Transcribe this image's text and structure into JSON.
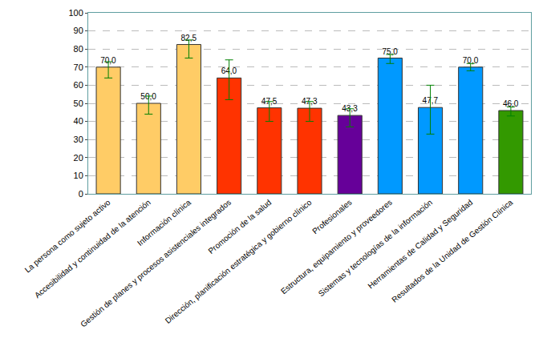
{
  "chart_data": {
    "type": "bar",
    "categories": [
      "La persona como sujeto activo",
      "Accesibilidad y continuidad de la atención",
      "Información clínica",
      "Gestión de planes y procesos asistenciales integrados",
      "Promoción de la salud",
      "Dirección, planificación estratégica y gobierno clínico",
      "Profesionales",
      "Estructura, equipamiento y proveedores",
      "Sistemas y tecnologías de la información",
      "Herramientas de Calidad y Seguridad",
      "Resultados de la Unidad de Gestión Clínica"
    ],
    "values": [
      70.0,
      50.0,
      82.5,
      64.0,
      47.5,
      47.3,
      43.3,
      75.0,
      47.7,
      70.0,
      46.0
    ],
    "value_labels": [
      "70,0",
      "50,0",
      "82,5",
      "64,0",
      "47,5",
      "47,3",
      "43,3",
      "75,0",
      "47,7",
      "70,0",
      "46,0"
    ],
    "error_plus": [
      3,
      4,
      2.5,
      10,
      3.5,
      3.7,
      3.7,
      2,
      12.3,
      2,
      2
    ],
    "error_minus": [
      6,
      6,
      7.5,
      12,
      7.5,
      7.3,
      6.3,
      3,
      14.7,
      2,
      3
    ],
    "colors": [
      "#ffcc66",
      "#ffcc66",
      "#ffcc66",
      "#ff3300",
      "#ff3300",
      "#ff3300",
      "#660099",
      "#0099ff",
      "#0099ff",
      "#0099ff",
      "#339900"
    ],
    "ylim": [
      0,
      100
    ],
    "yticks": [
      0,
      10,
      20,
      30,
      40,
      50,
      60,
      70,
      80,
      90,
      100
    ],
    "grid": true,
    "data_labels": true
  }
}
